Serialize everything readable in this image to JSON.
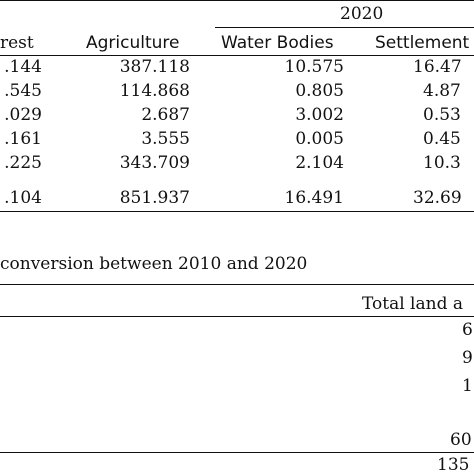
{
  "table1": {
    "year_header": "2020",
    "columns": [
      "rest",
      "Agriculture",
      "Water Bodies",
      "Settlement"
    ],
    "rows": [
      [
        ".144",
        "387.118",
        "10.575",
        "16.47"
      ],
      [
        ".545",
        "114.868",
        "0.805",
        "4.87"
      ],
      [
        ".029",
        "2.687",
        "3.002",
        "0.53"
      ],
      [
        ".161",
        "3.555",
        "0.005",
        "0.45"
      ],
      [
        ".225",
        "343.709",
        "2.104",
        "10.3"
      ],
      [
        ".104",
        "851.937",
        "16.491",
        "32.69"
      ]
    ]
  },
  "table2": {
    "caption": "conversion between 2010 and 2020",
    "column_header": "Total land a",
    "values": [
      "6",
      "9",
      "1",
      "",
      "60",
      "135"
    ]
  }
}
